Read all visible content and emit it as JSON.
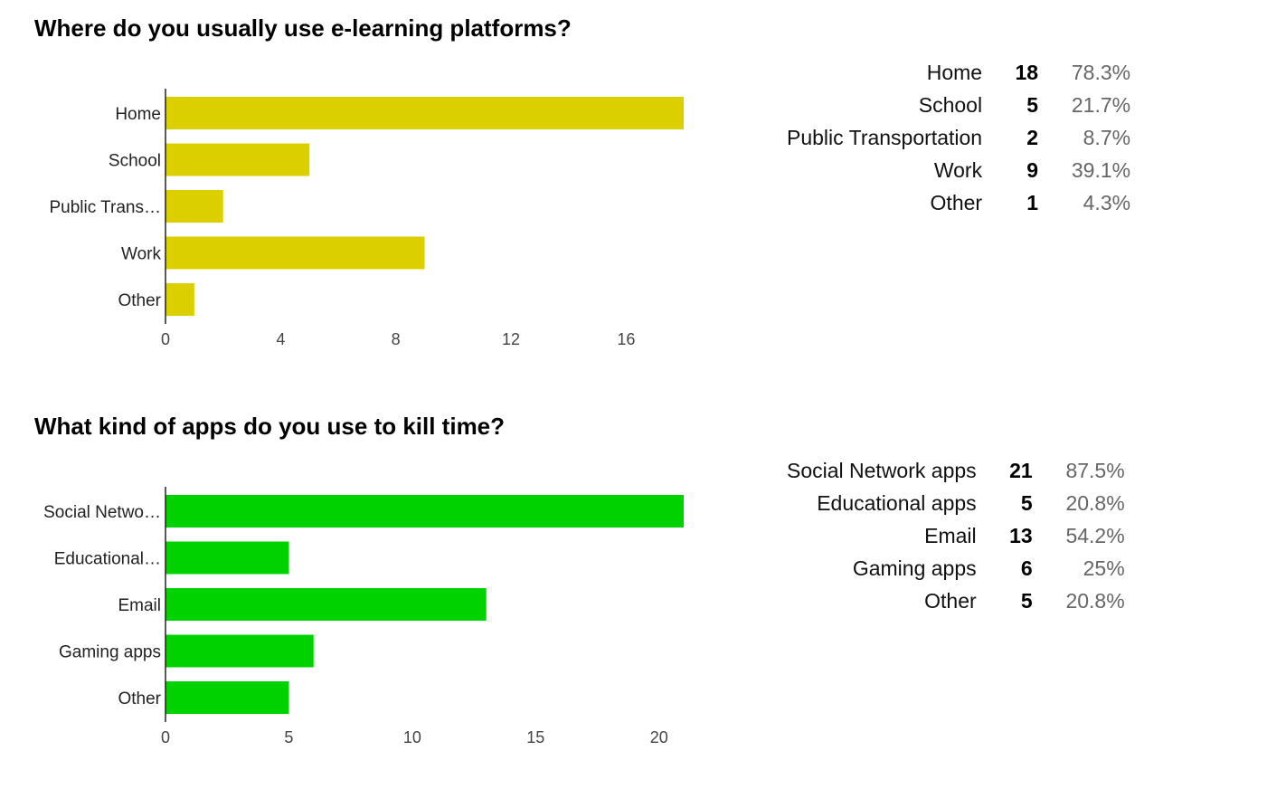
{
  "sections": [
    {
      "title": "Where do you usually use e-learning platforms?",
      "summary": [
        {
          "label": "Home",
          "count": "18",
          "percent": "78.3%"
        },
        {
          "label": "School",
          "count": "5",
          "percent": "21.7%"
        },
        {
          "label": "Public Transportation",
          "count": "2",
          "percent": "8.7%"
        },
        {
          "label": "Work",
          "count": "9",
          "percent": "39.1%"
        },
        {
          "label": "Other",
          "count": "1",
          "percent": "4.3%"
        }
      ]
    },
    {
      "title": "What kind of apps do you use to kill time?",
      "summary": [
        {
          "label": "Social Network apps",
          "count": "21",
          "percent": "87.5%"
        },
        {
          "label": "Educational apps",
          "count": "5",
          "percent": "20.8%"
        },
        {
          "label": "Email",
          "count": "13",
          "percent": "54.2%"
        },
        {
          "label": "Gaming apps",
          "count": "6",
          "percent": "25%"
        },
        {
          "label": "Other",
          "count": "5",
          "percent": "20.8%"
        }
      ]
    }
  ],
  "chart_data": [
    {
      "type": "bar",
      "orientation": "horizontal",
      "title": "Where do you usually use e-learning platforms?",
      "categories": [
        "Home",
        "School",
        "Public Trans…",
        "Work",
        "Other"
      ],
      "values": [
        18,
        5,
        2,
        9,
        1
      ],
      "xlim": [
        0,
        18
      ],
      "xticks": [
        "0",
        "4",
        "8",
        "12",
        "16"
      ],
      "xtick_values": [
        0,
        4,
        8,
        12,
        16
      ],
      "color": "#dccf00",
      "grid": false
    },
    {
      "type": "bar",
      "orientation": "horizontal",
      "title": "What kind of apps do you use to kill time?",
      "categories": [
        "Social Netwo…",
        "Educational…",
        "Email",
        "Gaming apps",
        "Other"
      ],
      "values": [
        21,
        5,
        13,
        6,
        5
      ],
      "xlim": [
        0,
        21
      ],
      "xticks": [
        "0",
        "5",
        "10",
        "15",
        "20"
      ],
      "xtick_values": [
        0,
        5,
        10,
        15,
        20
      ],
      "color": "#00d200",
      "grid": false
    }
  ]
}
